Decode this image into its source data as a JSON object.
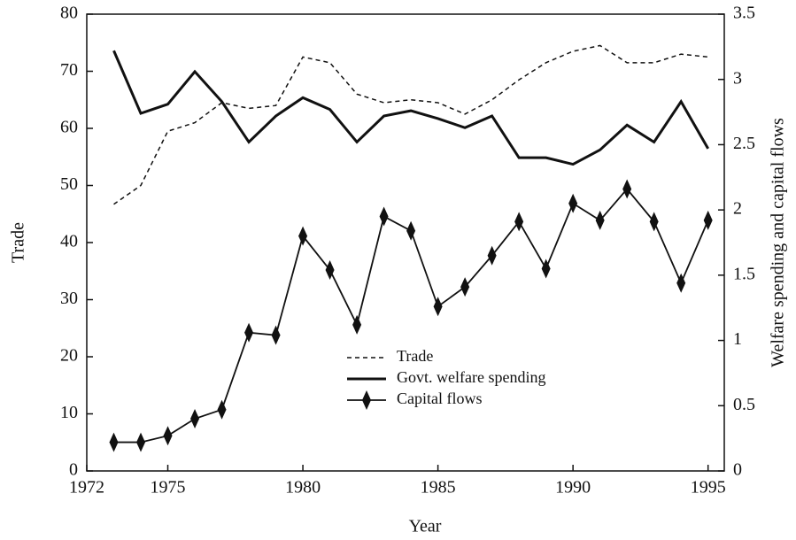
{
  "chart_data": {
    "type": "line",
    "x_label": "Year",
    "y_label": "Trade",
    "y2_label": "Welfare spending and capital flows",
    "x": [
      1973,
      1974,
      1975,
      1976,
      1977,
      1978,
      1979,
      1980,
      1981,
      1982,
      1983,
      1984,
      1985,
      1986,
      1987,
      1988,
      1989,
      1990,
      1991,
      1992,
      1993,
      1994,
      1995
    ],
    "series": [
      {
        "name": "Trade",
        "color": "#111111",
        "style": "dotted",
        "values": [
          46.7,
          50,
          59.5,
          61,
          64.5,
          63.5,
          64,
          72.5,
          71.5,
          66,
          64.5,
          65,
          64.5,
          62.5,
          65,
          68.5,
          71.5,
          73.5,
          74.5,
          71.5,
          71.5,
          73,
          72.5
        ]
      },
      {
        "name": "Govt. welfare spending",
        "color": "#111111",
        "style": "solid",
        "axis": "y2",
        "values": [
          3.22,
          2.74,
          2.81,
          3.06,
          2.83,
          2.52,
          2.72,
          2.86,
          2.77,
          2.52,
          2.72,
          2.76,
          2.7,
          2.63,
          2.72,
          2.4,
          2.4,
          2.35,
          2.46,
          2.65,
          2.52,
          2.83,
          2.47
        ]
      },
      {
        "name": "Capital flows",
        "color": "#111111",
        "style": "solid",
        "marker": "diamond",
        "axis": "y2",
        "values": [
          0.22,
          0.22,
          0.27,
          0.4,
          0.47,
          1.06,
          1.04,
          1.8,
          1.54,
          1.12,
          1.95,
          1.84,
          1.26,
          1.41,
          1.65,
          1.91,
          1.55,
          2.05,
          1.92,
          2.16,
          1.91,
          1.44,
          1.92
        ]
      }
    ],
    "xlim": [
      1972,
      1995.6
    ],
    "xticks": [
      1972,
      1975,
      1980,
      1985,
      1990,
      1995
    ],
    "ylim": [
      0,
      80
    ],
    "yticks": [
      0,
      10,
      20,
      30,
      40,
      50,
      60,
      70,
      80
    ],
    "y2lim": [
      0,
      3.5
    ],
    "y2ticks": [
      0,
      0.5,
      1,
      1.5,
      2,
      2.5,
      3,
      3.5
    ],
    "legend": "center",
    "grid": false
  }
}
